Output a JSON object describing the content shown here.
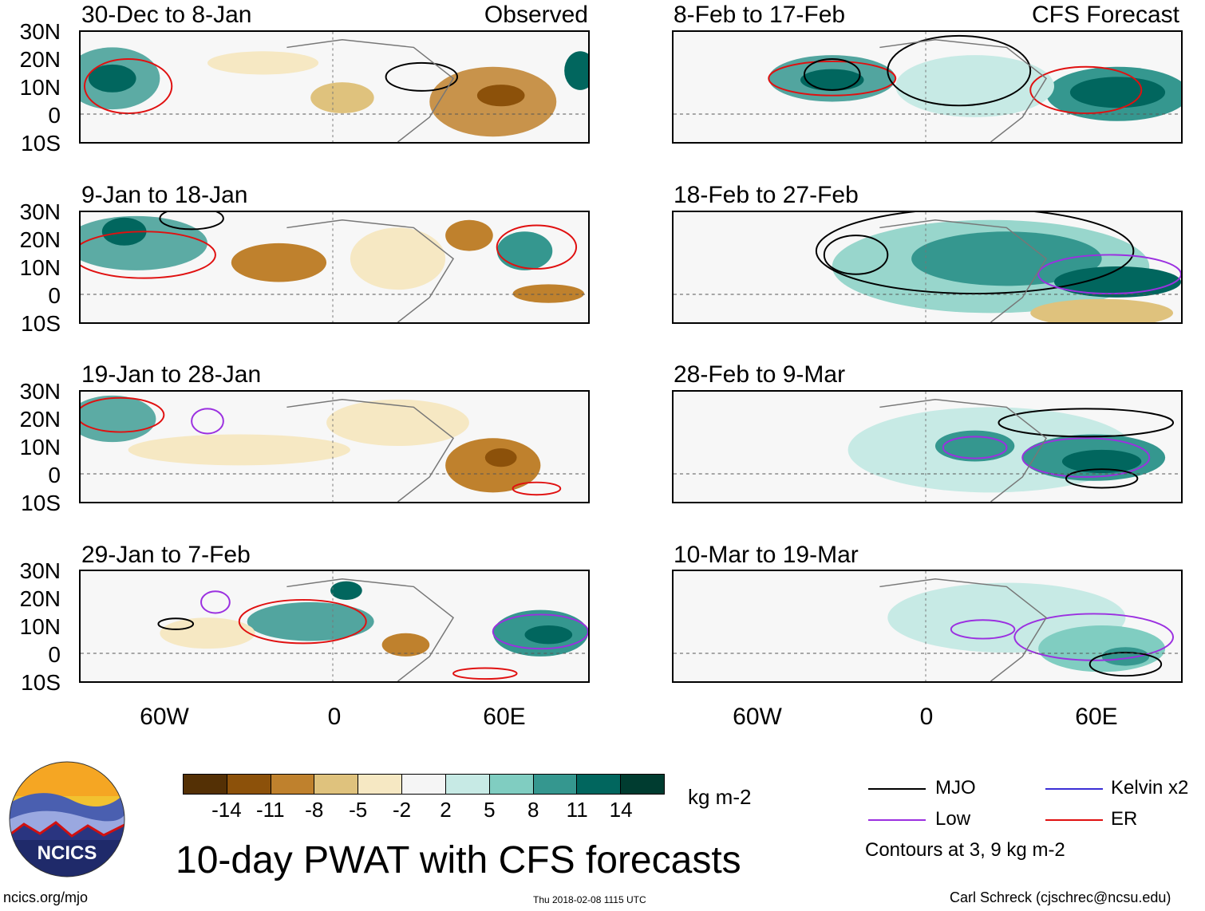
{
  "title": "10-day PWAT with CFS forecasts",
  "units": "kg m-2",
  "observed_label": "Observed",
  "forecast_label": "CFS Forecast",
  "panels_observed": [
    {
      "period": "30-Dec to 8-Jan"
    },
    {
      "period": "9-Jan to 18-Jan"
    },
    {
      "period": "19-Jan to 28-Jan"
    },
    {
      "period": "29-Jan to 7-Feb"
    }
  ],
  "panels_forecast": [
    {
      "period": "8-Feb to 17-Feb"
    },
    {
      "period": "18-Feb to 27-Feb"
    },
    {
      "period": "28-Feb to 9-Mar"
    },
    {
      "period": "10-Mar to 19-Mar"
    }
  ],
  "lat_labels": [
    "30N",
    "20N",
    "10N",
    "0",
    "10S"
  ],
  "lon_labels": [
    "60W",
    "0",
    "60E"
  ],
  "colorbar": {
    "colors": [
      "#543005",
      "#8c510a",
      "#bf812d",
      "#dfc27d",
      "#f6e8c3",
      "#f5f5f5",
      "#c7eae5",
      "#80cdc1",
      "#35978f",
      "#01665e",
      "#003c30"
    ],
    "ticks": [
      "-14",
      "-11",
      "-8",
      "-5",
      "-2",
      "2",
      "5",
      "8",
      "11",
      "14"
    ]
  },
  "legend": {
    "items": [
      {
        "label": "MJO",
        "color": "#000000"
      },
      {
        "label": "Kelvin x2",
        "color": "#3b2fd6"
      },
      {
        "label": "Low",
        "color": "#9b30e0"
      },
      {
        "label": "ER",
        "color": "#e01010"
      }
    ],
    "note": "Contours at 3, 9 kg m-2"
  },
  "logo_text": "NCICS",
  "footer": {
    "left": "ncics.org/mjo",
    "center": "Thu 2018-02-08 1115 UTC",
    "right": "Carl Schreck (cjschrec@ncsu.edu)"
  }
}
